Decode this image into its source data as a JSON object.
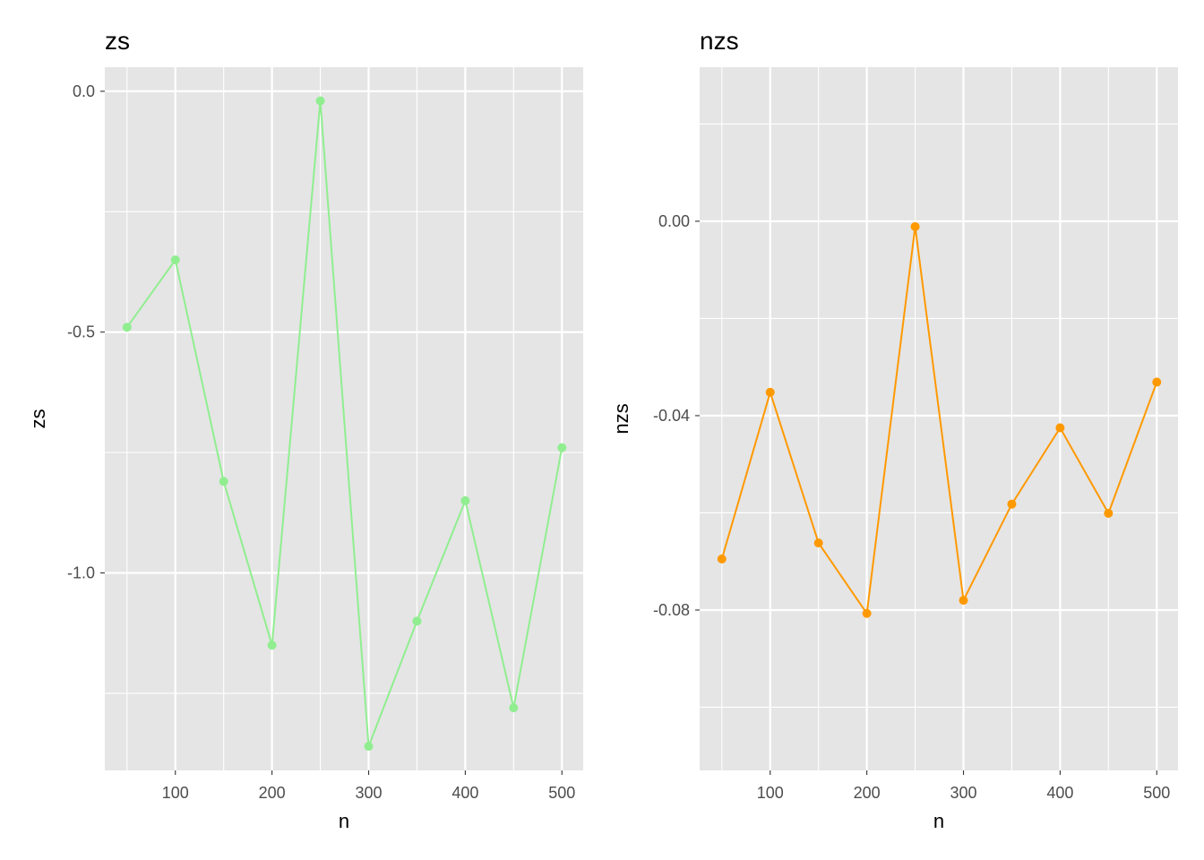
{
  "chart_data": [
    {
      "type": "line",
      "title": "zs",
      "xlabel": "n",
      "ylabel": "zs",
      "x": [
        50,
        100,
        150,
        200,
        250,
        300,
        350,
        400,
        450,
        500
      ],
      "series": [
        {
          "values": [
            -0.49,
            -0.35,
            -0.81,
            -1.15,
            -0.02,
            -1.36,
            -1.1,
            -0.85,
            -1.28,
            -0.74
          ],
          "color": "#90EE90"
        }
      ],
      "xlim": [
        27,
        522
      ],
      "ylim": [
        -1.41,
        0.05
      ],
      "xticks": [
        100,
        200,
        300,
        400,
        500
      ],
      "xtick_labels": [
        "100",
        "200",
        "300",
        "400",
        "500"
      ],
      "yticks": [
        0.0,
        -0.5,
        -1.0
      ],
      "ytick_labels": [
        "0.0",
        "-0.5",
        "-1.0"
      ],
      "yminor": [
        -0.25,
        -0.75,
        -1.25
      ],
      "xminor": [
        50,
        150,
        250,
        350,
        450
      ],
      "grid": true,
      "panel_background": "#E5E5E5"
    },
    {
      "type": "line",
      "title": "nzs",
      "xlabel": "n",
      "ylabel": "nzs",
      "x": [
        50,
        100,
        150,
        200,
        250,
        300,
        350,
        400,
        450,
        500
      ],
      "series": [
        {
          "values": [
            -0.0695,
            -0.0352,
            -0.0662,
            -0.0807,
            -0.0011,
            -0.078,
            -0.0582,
            -0.0425,
            -0.0601,
            -0.0331
          ],
          "color": "#FF9900"
        }
      ],
      "xlim": [
        27,
        522
      ],
      "ylim": [
        -0.113,
        0.0317
      ],
      "xticks": [
        100,
        200,
        300,
        400,
        500
      ],
      "xtick_labels": [
        "100",
        "200",
        "300",
        "400",
        "500"
      ],
      "yticks": [
        0.0,
        -0.04,
        -0.08
      ],
      "ytick_labels": [
        "0.00",
        "-0.04",
        "-0.08"
      ],
      "yminor": [
        0.02,
        -0.02,
        -0.06,
        -0.1
      ],
      "xminor": [
        50,
        150,
        250,
        350,
        450
      ],
      "grid": true,
      "panel_background": "#E5E5E5"
    }
  ]
}
